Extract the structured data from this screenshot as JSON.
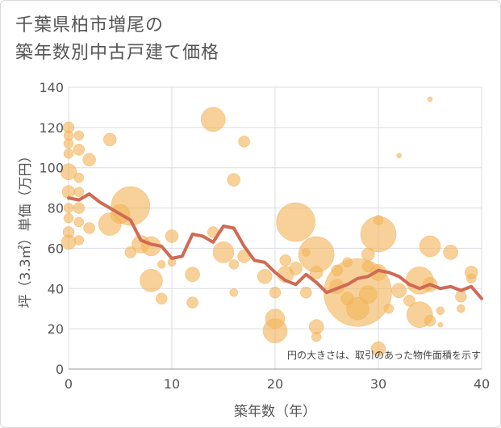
{
  "title": {
    "line1": "千葉県柏市増尾の",
    "line2": "築年数別中古戸建て価格"
  },
  "note": "円の大きさは、取引のあった物件面積を示す",
  "colors": {
    "bubble": "#f2b55a",
    "line": "#d06a55",
    "grid": "#d8dde6",
    "text": "#555555"
  },
  "chart_data": {
    "type": "scatter",
    "xlabel": "築年数（年）",
    "ylabel": "坪（3.3㎡）単価（万円）",
    "xlim": [
      0,
      40
    ],
    "ylim": [
      0,
      140
    ],
    "x_ticks": [
      0,
      10,
      20,
      30,
      40
    ],
    "y_ticks": [
      0,
      20,
      40,
      60,
      80,
      100,
      120,
      140
    ],
    "grid": true,
    "series": [
      {
        "kind": "bubbles",
        "points": [
          {
            "x": 0,
            "y": 120,
            "r": 7
          },
          {
            "x": 0,
            "y": 116,
            "r": 6
          },
          {
            "x": 0,
            "y": 112,
            "r": 6
          },
          {
            "x": 0,
            "y": 107,
            "r": 6
          },
          {
            "x": 0,
            "y": 98,
            "r": 10
          },
          {
            "x": 0,
            "y": 88,
            "r": 8
          },
          {
            "x": 0,
            "y": 80,
            "r": 6
          },
          {
            "x": 0,
            "y": 75,
            "r": 6
          },
          {
            "x": 0,
            "y": 68,
            "r": 7
          },
          {
            "x": 0,
            "y": 63,
            "r": 9
          },
          {
            "x": 1,
            "y": 116,
            "r": 6
          },
          {
            "x": 1,
            "y": 109,
            "r": 7
          },
          {
            "x": 1,
            "y": 95,
            "r": 6
          },
          {
            "x": 1,
            "y": 88,
            "r": 6
          },
          {
            "x": 1,
            "y": 80,
            "r": 7
          },
          {
            "x": 1,
            "y": 73,
            "r": 6
          },
          {
            "x": 1,
            "y": 64,
            "r": 6
          },
          {
            "x": 2,
            "y": 104,
            "r": 8
          },
          {
            "x": 2,
            "y": 70,
            "r": 7
          },
          {
            "x": 4,
            "y": 114,
            "r": 8
          },
          {
            "x": 4,
            "y": 72,
            "r": 14
          },
          {
            "x": 5,
            "y": 77,
            "r": 12
          },
          {
            "x": 6,
            "y": 81,
            "r": 24
          },
          {
            "x": 6,
            "y": 58,
            "r": 7
          },
          {
            "x": 7,
            "y": 62,
            "r": 11
          },
          {
            "x": 8,
            "y": 61,
            "r": 12
          },
          {
            "x": 8,
            "y": 44,
            "r": 14
          },
          {
            "x": 9,
            "y": 52,
            "r": 5
          },
          {
            "x": 9,
            "y": 35,
            "r": 7
          },
          {
            "x": 10,
            "y": 66,
            "r": 8
          },
          {
            "x": 10,
            "y": 53,
            "r": 5
          },
          {
            "x": 12,
            "y": 47,
            "r": 9
          },
          {
            "x": 12,
            "y": 33,
            "r": 7
          },
          {
            "x": 14,
            "y": 124,
            "r": 15
          },
          {
            "x": 14,
            "y": 68,
            "r": 7
          },
          {
            "x": 15,
            "y": 58,
            "r": 13
          },
          {
            "x": 16,
            "y": 94,
            "r": 8
          },
          {
            "x": 16,
            "y": 52,
            "r": 6
          },
          {
            "x": 16,
            "y": 38,
            "r": 5
          },
          {
            "x": 17,
            "y": 113,
            "r": 7
          },
          {
            "x": 17,
            "y": 56,
            "r": 8
          },
          {
            "x": 19,
            "y": 46,
            "r": 9
          },
          {
            "x": 20,
            "y": 38,
            "r": 7
          },
          {
            "x": 20,
            "y": 25,
            "r": 12
          },
          {
            "x": 20,
            "y": 19,
            "r": 15
          },
          {
            "x": 21,
            "y": 54,
            "r": 7
          },
          {
            "x": 21,
            "y": 47,
            "r": 10
          },
          {
            "x": 22,
            "y": 73,
            "r": 24
          },
          {
            "x": 22,
            "y": 50,
            "r": 8
          },
          {
            "x": 23,
            "y": 58,
            "r": 5
          },
          {
            "x": 23,
            "y": 38,
            "r": 7
          },
          {
            "x": 24,
            "y": 57,
            "r": 22
          },
          {
            "x": 24,
            "y": 48,
            "r": 8
          },
          {
            "x": 24,
            "y": 21,
            "r": 9
          },
          {
            "x": 24,
            "y": 16,
            "r": 6
          },
          {
            "x": 26,
            "y": 49,
            "r": 7
          },
          {
            "x": 26,
            "y": 41,
            "r": 9
          },
          {
            "x": 27,
            "y": 35,
            "r": 8
          },
          {
            "x": 27,
            "y": 53,
            "r": 6
          },
          {
            "x": 28,
            "y": 38,
            "r": 42
          },
          {
            "x": 28,
            "y": 30,
            "r": 14
          },
          {
            "x": 29,
            "y": 51,
            "r": 7
          },
          {
            "x": 29,
            "y": 37,
            "r": 11
          },
          {
            "x": 29,
            "y": 57,
            "r": 8
          },
          {
            "x": 30,
            "y": 74,
            "r": 6
          },
          {
            "x": 30,
            "y": 67,
            "r": 22
          },
          {
            "x": 30,
            "y": 48,
            "r": 10
          },
          {
            "x": 30,
            "y": 10,
            "r": 9
          },
          {
            "x": 31,
            "y": 30,
            "r": 6
          },
          {
            "x": 32,
            "y": 106,
            "r": 3
          },
          {
            "x": 32,
            "y": 39,
            "r": 9
          },
          {
            "x": 33,
            "y": 34,
            "r": 7
          },
          {
            "x": 34,
            "y": 44,
            "r": 17
          },
          {
            "x": 34,
            "y": 27,
            "r": 16
          },
          {
            "x": 35,
            "y": 134,
            "r": 3
          },
          {
            "x": 35,
            "y": 61,
            "r": 13
          },
          {
            "x": 35,
            "y": 42,
            "r": 9
          },
          {
            "x": 35,
            "y": 24,
            "r": 7
          },
          {
            "x": 36,
            "y": 29,
            "r": 5
          },
          {
            "x": 36,
            "y": 22,
            "r": 3
          },
          {
            "x": 37,
            "y": 58,
            "r": 9
          },
          {
            "x": 38,
            "y": 36,
            "r": 7
          },
          {
            "x": 38,
            "y": 30,
            "r": 5
          },
          {
            "x": 39,
            "y": 48,
            "r": 8
          },
          {
            "x": 39,
            "y": 45,
            "r": 6
          }
        ]
      },
      {
        "kind": "line",
        "name": "",
        "x": [
          0,
          1,
          2,
          3,
          4,
          5,
          6,
          7,
          8,
          9,
          10,
          11,
          12,
          13,
          14,
          15,
          16,
          17,
          18,
          19,
          20,
          21,
          22,
          23,
          24,
          25,
          26,
          27,
          28,
          29,
          30,
          31,
          32,
          33,
          34,
          35,
          36,
          37,
          38,
          39,
          40
        ],
        "y": [
          85,
          84,
          87,
          83,
          80,
          77,
          74,
          64,
          62,
          61,
          55,
          56,
          67,
          66,
          63,
          71,
          70,
          61,
          54,
          53,
          48,
          44,
          42,
          47,
          43,
          38,
          40,
          42,
          45,
          46,
          49,
          48,
          46,
          42,
          40,
          42,
          40,
          41,
          39,
          41,
          35
        ]
      }
    ]
  }
}
